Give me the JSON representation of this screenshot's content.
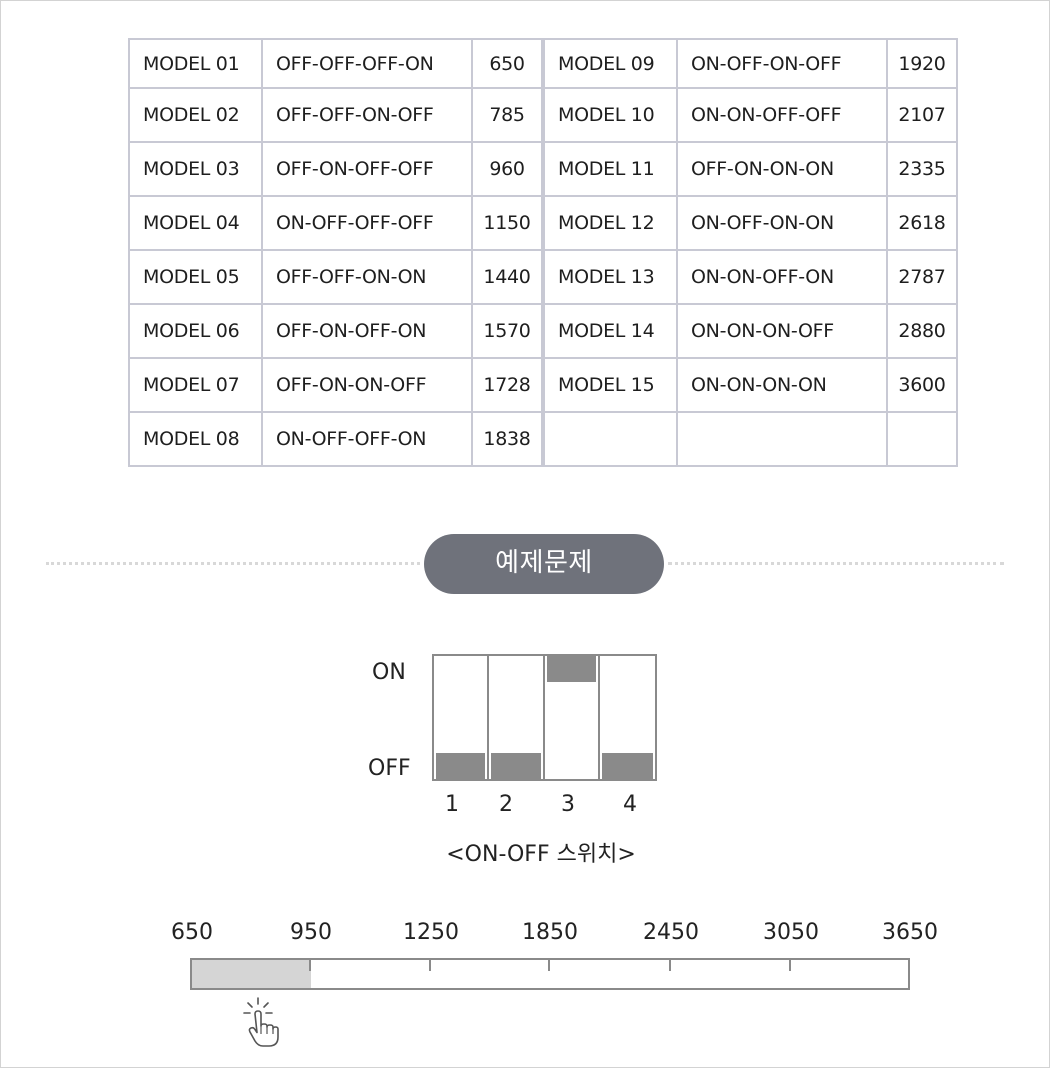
{
  "table": {
    "rows": [
      [
        {
          "model": "MODEL 01",
          "pattern": "OFF-OFF-OFF-ON",
          "value": "650"
        },
        {
          "model": "MODEL 09",
          "pattern": "ON-OFF-ON-OFF",
          "value": "1920"
        }
      ],
      [
        {
          "model": "MODEL 02",
          "pattern": "OFF-OFF-ON-OFF",
          "value": "785"
        },
        {
          "model": "MODEL 10",
          "pattern": "ON-ON-OFF-OFF",
          "value": "2107"
        }
      ],
      [
        {
          "model": "MODEL 03",
          "pattern": "OFF-ON-OFF-OFF",
          "value": "960"
        },
        {
          "model": "MODEL 11",
          "pattern": "OFF-ON-ON-ON",
          "value": "2335"
        }
      ],
      [
        {
          "model": "MODEL 04",
          "pattern": "ON-OFF-OFF-OFF",
          "value": "1150"
        },
        {
          "model": "MODEL 12",
          "pattern": "ON-OFF-ON-ON",
          "value": "2618"
        }
      ],
      [
        {
          "model": "MODEL 05",
          "pattern": "OFF-OFF-ON-ON",
          "value": "1440"
        },
        {
          "model": "MODEL 13",
          "pattern": "ON-ON-OFF-ON",
          "value": "2787"
        }
      ],
      [
        {
          "model": "MODEL 06",
          "pattern": "OFF-ON-OFF-ON",
          "value": "1570"
        },
        {
          "model": "MODEL 14",
          "pattern": "ON-ON-ON-OFF",
          "value": "2880"
        }
      ],
      [
        {
          "model": "MODEL 07",
          "pattern": "OFF-ON-ON-OFF",
          "value": "1728"
        },
        {
          "model": "MODEL 15",
          "pattern": "ON-ON-ON-ON",
          "value": "3600"
        }
      ],
      [
        {
          "model": "MODEL 08",
          "pattern": "ON-OFF-OFF-ON",
          "value": "1838"
        },
        {
          "model": "",
          "pattern": "",
          "value": ""
        }
      ]
    ]
  },
  "badge": {
    "label": "예제문제"
  },
  "switch": {
    "on_label": "ON",
    "off_label": "OFF",
    "positions": [
      "1",
      "2",
      "3",
      "4"
    ],
    "states": [
      "OFF",
      "OFF",
      "ON",
      "OFF"
    ],
    "caption": "<ON-OFF 스위치>"
  },
  "range": {
    "ticks": [
      "650",
      "950",
      "1250",
      "1850",
      "2450",
      "3050",
      "3650"
    ],
    "min": 650,
    "max": 3650,
    "selected_min": 650,
    "selected_max": 950
  },
  "colors": {
    "grid": "#c8c9d4",
    "badge_bg": "#6f727b",
    "switch": "#8a8a8a",
    "range_fill": "#d5d5d5"
  },
  "icons": {
    "cursor": "pointer-hand-icon"
  }
}
